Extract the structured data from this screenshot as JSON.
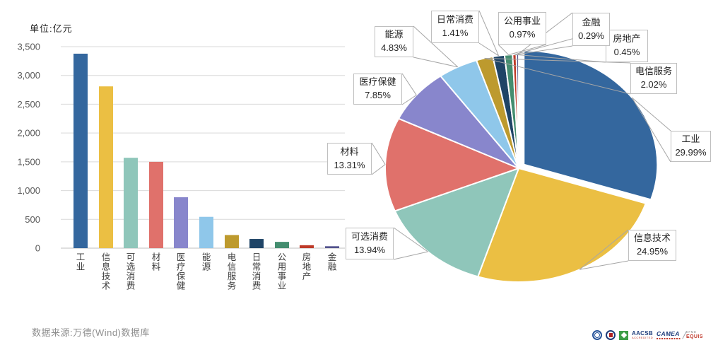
{
  "unit_label": "单位:亿元",
  "footer": {
    "source_text": "数据来源:万德(Wind)数据库"
  },
  "logos": {
    "aacsb": "AACSB",
    "aacsb_sub": "ACCREDITED",
    "camea": "CAMEA",
    "efmd": "EFMD",
    "equis": "EQUIS"
  },
  "colors": {
    "grid": "#D9D9D9",
    "axis": "#BFBFBF",
    "tick_text": "#595959",
    "category_text": "#3F3F3F",
    "leader_line": "#A6A6A6",
    "callout_border": "#BFBFBF"
  },
  "chart_data": [
    {
      "type": "bar",
      "title": "单位:亿元",
      "unit": "亿元",
      "categories": [
        "工业",
        "信息技术",
        "可选消费",
        "材料",
        "医疗保健",
        "能源",
        "电信服务",
        "日常消费",
        "公用事业",
        "房地产",
        "金融"
      ],
      "values": [
        3378,
        2810,
        1570,
        1499,
        884,
        544,
        228,
        159,
        109,
        51,
        33
      ],
      "colors": [
        "#34679E",
        "#EBBF43",
        "#8FC6BA",
        "#E0716B",
        "#8886CC",
        "#8FC7EA",
        "#BD9A2E",
        "#1F4466",
        "#448D6F",
        "#BE3A28",
        "#54548E"
      ],
      "ylim": [
        0,
        3500
      ],
      "ytick_step": 500,
      "grid": true,
      "legend": "none"
    },
    {
      "type": "pie",
      "start_angle_deg": 0,
      "direction": "clockwise",
      "slices": [
        {
          "id": "industry",
          "label": "工业",
          "pct": 29.99,
          "color": "#34679E",
          "explode": true
        },
        {
          "id": "it",
          "label": "信息技术",
          "pct": 24.95,
          "color": "#EBBF43"
        },
        {
          "id": "consumer-disc",
          "label": "可选消费",
          "pct": 13.94,
          "color": "#8FC6BA"
        },
        {
          "id": "materials",
          "label": "材料",
          "pct": 13.31,
          "color": "#E0716B"
        },
        {
          "id": "healthcare",
          "label": "医疗保健",
          "pct": 7.85,
          "color": "#8886CC"
        },
        {
          "id": "energy",
          "label": "能源",
          "pct": 4.83,
          "color": "#8FC7EA"
        },
        {
          "id": "telecom",
          "label": "电信服务",
          "pct": 2.02,
          "color": "#BD9A2E"
        },
        {
          "id": "staples",
          "label": "日常消费",
          "pct": 1.41,
          "color": "#1F4466"
        },
        {
          "id": "utilities",
          "label": "公用事业",
          "pct": 0.97,
          "color": "#448D6F"
        },
        {
          "id": "realestate",
          "label": "房地产",
          "pct": 0.45,
          "color": "#BE3A28"
        },
        {
          "id": "finance",
          "label": "金融",
          "pct": 0.29,
          "color": "#54548E"
        }
      ],
      "label_format": "name + percent (2 decimals)"
    }
  ]
}
